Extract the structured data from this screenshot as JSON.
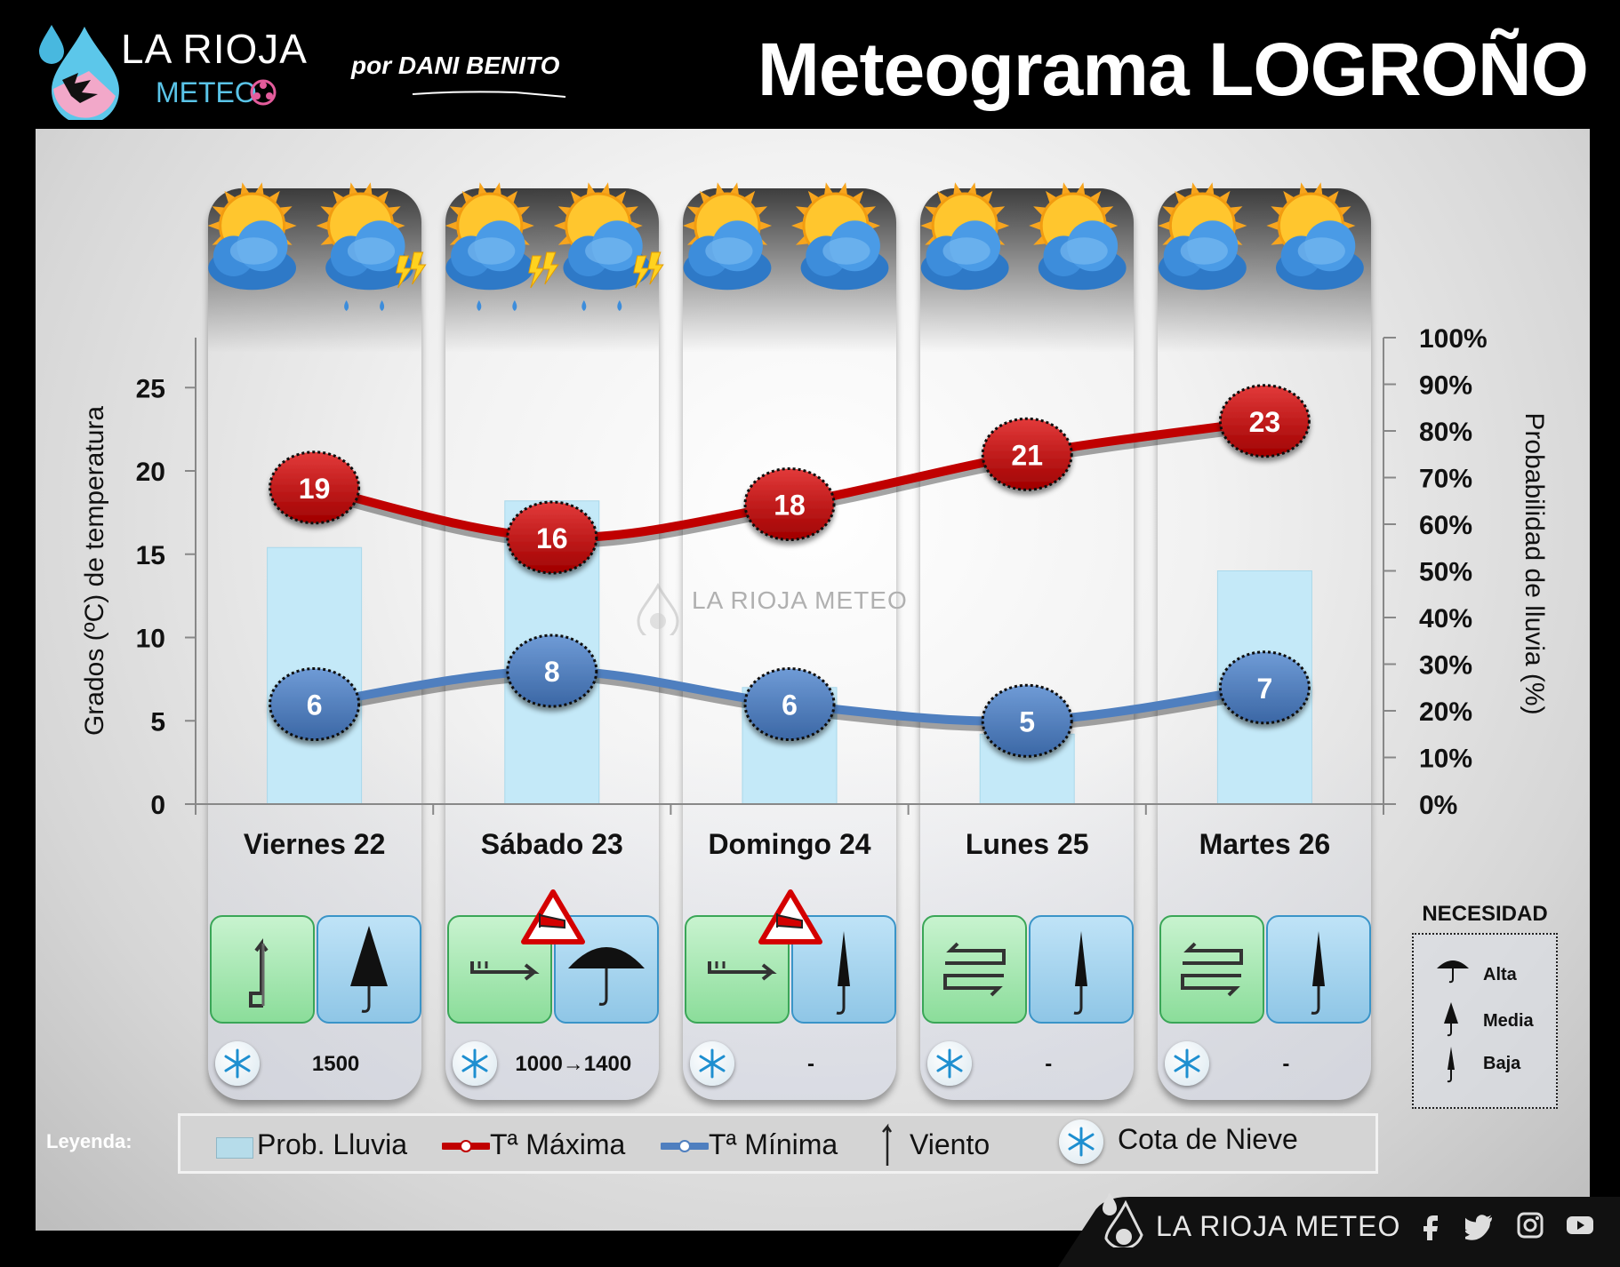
{
  "header": {
    "brand_name": "LA RIOJA",
    "brand_sub": "METEO",
    "author": "por DANI BENITO",
    "title": "Meteograma LOGROÑO"
  },
  "watermark": "LA RIOJA METEO",
  "chart_data": {
    "type": "line",
    "categories": [
      "Viernes 22",
      "Sábado 23",
      "Domingo 24",
      "Lunes 25",
      "Martes 26"
    ],
    "series": [
      {
        "name": "Tª Máxima",
        "type": "line",
        "axis": "left",
        "color": "#c00000",
        "values": [
          19,
          16,
          18,
          21,
          23
        ]
      },
      {
        "name": "Tª Mínima",
        "type": "line",
        "axis": "left",
        "color": "#4f7fbf",
        "values": [
          6,
          8,
          6,
          5,
          7
        ]
      },
      {
        "name": "Prob. Lluvia",
        "type": "bar",
        "axis": "right",
        "color": "#c4e9f8",
        "values": [
          55,
          65,
          25,
          15,
          50
        ]
      }
    ],
    "ylabel": "Grados (ºC) de temperatura",
    "ylim": [
      0,
      28
    ],
    "yticks": [
      "0",
      "5",
      "10",
      "15",
      "20",
      "25"
    ],
    "y2label": "Probabilidad de lluvia (%)",
    "y2lim": [
      0,
      100
    ],
    "y2ticks": [
      "0%",
      "10%",
      "20%",
      "30%",
      "40%",
      "50%",
      "60%",
      "70%",
      "80%",
      "90%",
      "100%"
    ],
    "grid": false,
    "legend": "bottom"
  },
  "days": [
    {
      "label": "Viernes 22",
      "sky": [
        "sun-cloud",
        "storm-cloud"
      ],
      "wind": "north",
      "umbrella": "media",
      "warning": false,
      "snow_level": "1500"
    },
    {
      "label": "Sábado 23",
      "sky": [
        "sun-rain-storm",
        "sun-storm-rain"
      ],
      "wind": "east",
      "umbrella": "alta",
      "warning": true,
      "snow_level": "1000→1400"
    },
    {
      "label": "Domingo 24",
      "sky": [
        "sun-cloud",
        "sun-cloud"
      ],
      "wind": "east",
      "umbrella": "baja",
      "warning": true,
      "snow_level": "-"
    },
    {
      "label": "Lunes 25",
      "sky": [
        "sun-cloud",
        "sun-cloud"
      ],
      "wind": "variable",
      "umbrella": "baja",
      "warning": false,
      "snow_level": "-"
    },
    {
      "label": "Martes 26",
      "sky": [
        "sun-cloud",
        "sun-cloud"
      ],
      "wind": "variable",
      "umbrella": "baja",
      "warning": false,
      "snow_level": "-"
    }
  ],
  "necesidad": {
    "title": "NECESIDAD",
    "levels": [
      "Alta",
      "Media",
      "Baja"
    ]
  },
  "legend": {
    "label": "Leyenda:",
    "items": [
      "Prob. Lluvia",
      "Tª Máxima",
      "Tª Mínima",
      "Viento",
      "Cota de Nieve"
    ]
  },
  "footer": {
    "brand": "LA RIOJA METEO",
    "social": [
      "facebook-icon",
      "twitter-icon",
      "instagram-icon",
      "youtube-icon"
    ]
  },
  "colors": {
    "max": "#c00000",
    "min": "#4f7fbf",
    "rain": "#c4e9f8",
    "wind_tile": "#a8e6b3",
    "umbrella_tile": "#a9d6ef"
  }
}
